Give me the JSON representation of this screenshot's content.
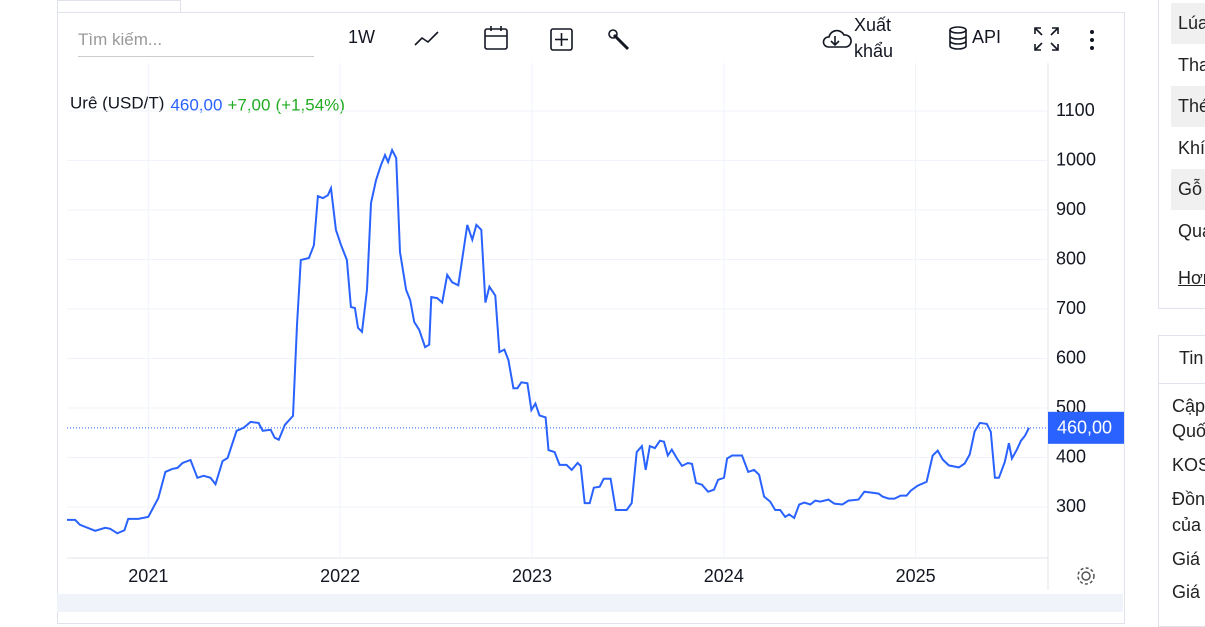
{
  "toolbar": {
    "search_placeholder": "Tìm kiếm...",
    "interval": "1W",
    "export": [
      "Xuất",
      "khẩu"
    ],
    "api": "API"
  },
  "chart_data": {
    "type": "line",
    "title": "Urê (USD/T)",
    "change": "+7,00",
    "change_pct": "(+1,54%)",
    "last_price": {
      "value": 460,
      "label": "460,00"
    },
    "xlim": [
      2020.576,
      2025.69
    ],
    "xticks": [
      2021,
      2022,
      2023,
      2024,
      2025
    ],
    "ylim": [
      197,
      1197
    ],
    "yticks": [
      300,
      400,
      500,
      600,
      700,
      800,
      900,
      1000,
      1100
    ],
    "grid": true,
    "series": [
      {
        "name": "Urê",
        "color": "#2962ff",
        "x": [
          2020.576,
          2020.618,
          2020.644,
          2020.723,
          2020.775,
          2020.801,
          2020.838,
          2020.875,
          2020.895,
          2020.948,
          2021.0,
          2021.052,
          2021.089,
          2021.125,
          2021.152,
          2021.178,
          2021.22,
          2021.256,
          2021.288,
          2021.324,
          2021.35,
          2021.387,
          2021.413,
          2021.46,
          2021.497,
          2021.533,
          2021.575,
          2021.596,
          2021.638,
          2021.659,
          2021.68,
          2021.712,
          2021.754,
          2021.775,
          2021.795,
          2021.837,
          2021.863,
          2021.884,
          2021.91,
          2021.936,
          2021.952,
          2021.978,
          2022.004,
          2022.035,
          2022.056,
          2022.077,
          2022.093,
          2022.114,
          2022.14,
          2022.161,
          2022.187,
          2022.213,
          2022.234,
          2022.25,
          2022.271,
          2022.292,
          2022.312,
          2022.344,
          2022.365,
          2022.386,
          2022.412,
          2022.443,
          2022.464,
          2022.475,
          2022.506,
          2022.532,
          2022.558,
          2022.584,
          2022.616,
          2022.663,
          2022.689,
          2022.71,
          2022.736,
          2022.757,
          2022.778,
          2022.809,
          2022.83,
          2022.856,
          2022.877,
          2022.903,
          2022.924,
          2022.945,
          2022.976,
          2022.997,
          2023.018,
          2023.039,
          2023.071,
          2023.086,
          2023.118,
          2023.144,
          2023.18,
          2023.207,
          2023.238,
          2023.254,
          2023.275,
          2023.301,
          2023.322,
          2023.353,
          2023.374,
          2023.41,
          2023.437,
          2023.494,
          2023.52,
          2023.546,
          2023.573,
          2023.593,
          2023.614,
          2023.641,
          2023.667,
          2023.688,
          2023.708,
          2023.729,
          2023.756,
          2023.782,
          2023.813,
          2023.834,
          2023.855,
          2023.886,
          2023.918,
          2023.949,
          2023.97,
          2024.001,
          2024.017,
          2024.043,
          2024.095,
          2024.127,
          2024.158,
          2024.184,
          2024.21,
          2024.242,
          2024.268,
          2024.294,
          2024.32,
          2024.341,
          2024.367,
          2024.393,
          2024.42,
          2024.451,
          2024.477,
          2024.503,
          2024.545,
          2024.576,
          2024.618,
          2024.65,
          2024.702,
          2024.733,
          2024.775,
          2024.807,
          2024.827,
          2024.859,
          2024.89,
          2024.922,
          2024.953,
          2024.974,
          2025.01,
          2025.057,
          2025.089,
          2025.115,
          2025.141,
          2025.173,
          2025.225,
          2025.256,
          2025.282,
          2025.308,
          2025.335,
          2025.371,
          2025.392,
          2025.413,
          2025.434,
          2025.465,
          2025.486,
          2025.502,
          2025.528,
          2025.549,
          2025.57,
          2025.591
        ],
        "values": [
          274,
          274,
          264,
          252,
          258,
          256,
          247,
          253,
          276,
          276,
          280,
          318,
          371,
          377,
          379,
          389,
          395,
          359,
          363,
          359,
          346,
          393,
          399,
          454,
          460,
          472,
          470,
          454,
          456,
          440,
          436,
          466,
          484,
          668,
          799,
          803,
          829,
          928,
          924,
          930,
          944,
          860,
          830,
          799,
          704,
          702,
          662,
          654,
          739,
          914,
          960,
          991,
          1011,
          997,
          1021,
          1005,
          815,
          739,
          718,
          674,
          658,
          623,
          628,
          724,
          722,
          713,
          769,
          754,
          748,
          870,
          840,
          870,
          860,
          713,
          745,
          727,
          613,
          618,
          597,
          540,
          540,
          552,
          550,
          496,
          509,
          485,
          481,
          415,
          411,
          385,
          385,
          375,
          389,
          383,
          308,
          308,
          339,
          341,
          357,
          357,
          294,
          294,
          308,
          411,
          423,
          375,
          423,
          419,
          434,
          432,
          404,
          416,
          398,
          383,
          389,
          387,
          349,
          345,
          331,
          335,
          355,
          359,
          398,
          404,
          404,
          371,
          375,
          365,
          321,
          311,
          294,
          294,
          280,
          285,
          278,
          305,
          309,
          305,
          313,
          311,
          315,
          307,
          305,
          313,
          315,
          331,
          329,
          327,
          321,
          317,
          317,
          323,
          323,
          333,
          343,
          351,
          404,
          414,
          396,
          384,
          380,
          388,
          406,
          453,
          470,
          468,
          452,
          359,
          359,
          391,
          429,
          398,
          416,
          434,
          444,
          460
        ]
      }
    ]
  },
  "sidebar": {
    "list": [
      "Lúa",
      "Tha",
      "Thé",
      "Khí",
      "Gỗ",
      "Qua"
    ],
    "more": "Hơn",
    "news_header": "Tin",
    "news": [
      "Cập",
      "Quố",
      "KOS",
      "Đồn",
      "của",
      "Giá",
      "Giá"
    ]
  }
}
